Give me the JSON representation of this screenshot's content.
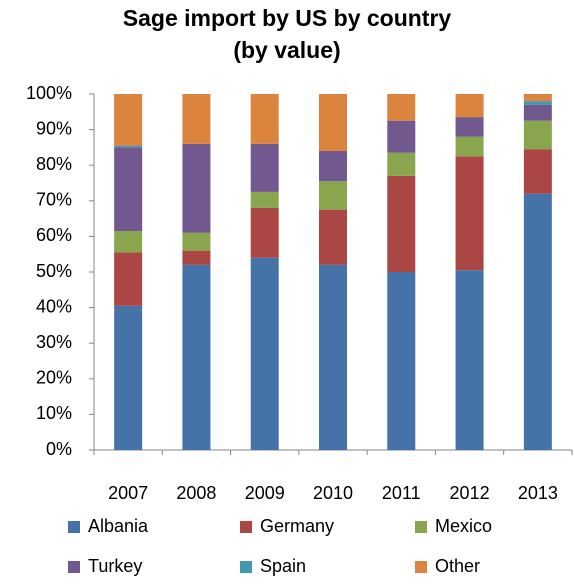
{
  "chart_data": {
    "type": "stacked_bar",
    "title": [
      "Sage import by US by country",
      "(by value)"
    ],
    "categories": [
      "2007",
      "2008",
      "2009",
      "2010",
      "2011",
      "2012",
      "2013"
    ],
    "series": [
      {
        "name": "Albania",
        "color": "#4572a7",
        "values": [
          40.5,
          52,
          54,
          52,
          50,
          50.5,
          72
        ]
      },
      {
        "name": "Germany",
        "color": "#aa4643",
        "values": [
          15,
          4,
          14,
          15.5,
          27,
          32,
          12.5
        ]
      },
      {
        "name": "Mexico",
        "color": "#89a54e",
        "values": [
          6,
          5,
          4.5,
          8,
          6.5,
          5.5,
          8
        ]
      },
      {
        "name": "Turkey",
        "color": "#71588f",
        "values": [
          23.5,
          25,
          13.5,
          8.5,
          9,
          5.5,
          4.5
        ]
      },
      {
        "name": "Spain",
        "color": "#4198af",
        "values": [
          0.5,
          0,
          0,
          0,
          0,
          0,
          1
        ]
      },
      {
        "name": "Other",
        "color": "#db843d",
        "values": [
          14.5,
          14,
          14,
          16,
          7.5,
          6.5,
          2
        ]
      }
    ],
    "ylim": [
      0,
      100
    ],
    "yticks": [
      {
        "value": 0,
        "label": "0%"
      },
      {
        "value": 10,
        "label": "10%"
      },
      {
        "value": 20,
        "label": "20%"
      },
      {
        "value": 30,
        "label": "30%"
      },
      {
        "value": 40,
        "label": "40%"
      },
      {
        "value": 50,
        "label": "50%"
      },
      {
        "value": 60,
        "label": "60%"
      },
      {
        "value": 70,
        "label": "70%"
      },
      {
        "value": 80,
        "label": "80%"
      },
      {
        "value": 90,
        "label": "90%"
      },
      {
        "value": 100,
        "label": "100%"
      }
    ],
    "grid": false,
    "legend": "bottom"
  }
}
